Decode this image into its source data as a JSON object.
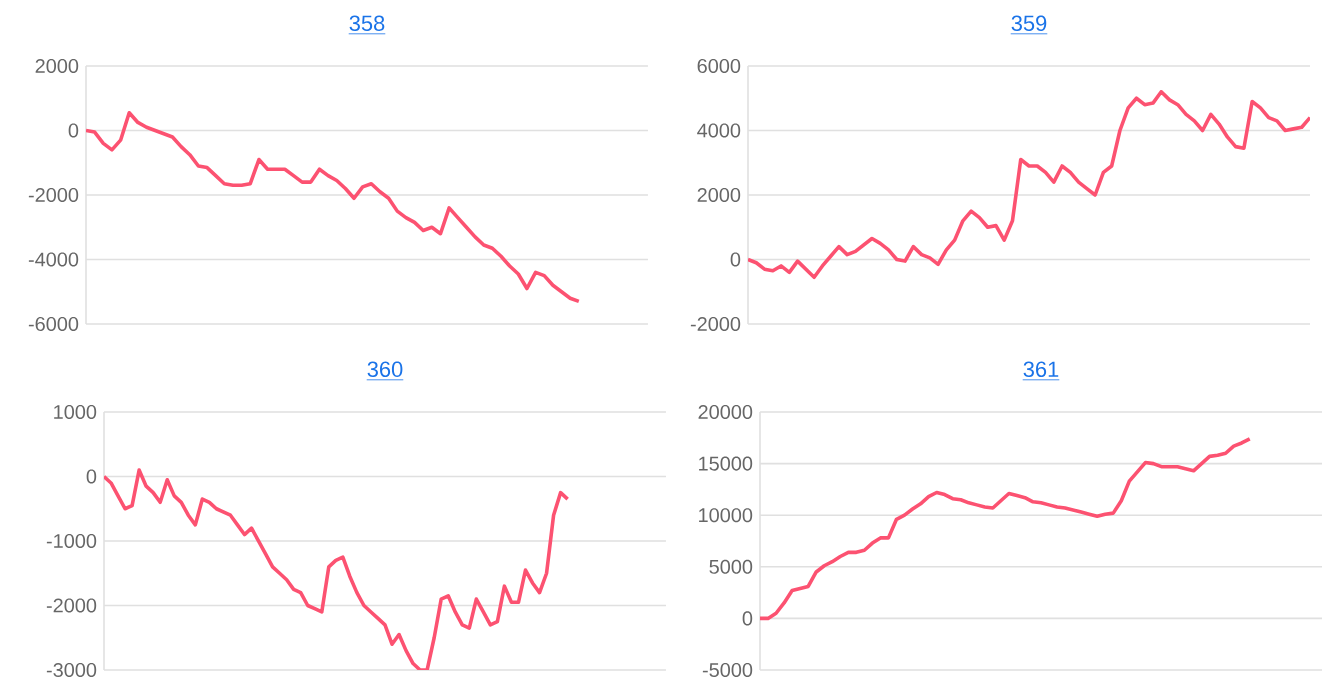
{
  "chart_data": [
    {
      "type": "line",
      "title": "358",
      "categories": [
        null,
        null,
        null,
        null,
        null,
        null,
        null,
        null,
        null,
        null,
        null,
        null,
        null,
        null,
        null,
        null,
        null,
        null,
        null,
        null,
        null,
        null,
        null,
        null,
        null,
        null,
        null,
        null,
        null,
        null,
        null,
        null,
        null,
        null,
        null,
        null,
        null,
        null,
        null,
        null,
        null,
        null,
        null,
        null,
        null,
        null,
        null,
        null,
        null,
        null,
        null,
        null,
        null,
        null,
        null,
        null,
        null,
        null,
        null,
        null,
        null,
        null,
        null,
        null,
        null,
        null
      ],
      "series": [
        {
          "color": "#fc5271",
          "values": [
            0,
            -50,
            -400,
            -600,
            -300,
            550,
            250,
            100,
            0,
            -100,
            -200,
            -500,
            -750,
            -1100,
            -1150,
            -1400,
            -1650,
            -1700,
            -1700,
            -1650,
            -900,
            -1200,
            -1200,
            -1200,
            -1400,
            -1600,
            -1600,
            -1200,
            -1400,
            -1550,
            -1800,
            -2100,
            -1750,
            -1650,
            -1900,
            -2100,
            -2500,
            -2700,
            -2850,
            -3100,
            -3000,
            -3200,
            -2400,
            -2700,
            -3000,
            -3300,
            -3550,
            -3650,
            -3900,
            -4200,
            -4450,
            -4900,
            -4400,
            -4500,
            -4800,
            -5000,
            -5200,
            -5300,
            null,
            null,
            null,
            null,
            null,
            null,
            null,
            null
          ]
        }
      ],
      "ylim": [
        -6000,
        2000
      ],
      "yticks": [
        -6000,
        -4000,
        -2000,
        0,
        2000
      ],
      "grid": "y",
      "tick_labels": "y",
      "marker": "none",
      "line_style": "solid"
    },
    {
      "type": "line",
      "title": "359",
      "categories": [
        null,
        null,
        null,
        null,
        null,
        null,
        null,
        null,
        null,
        null,
        null,
        null,
        null,
        null,
        null,
        null,
        null,
        null,
        null,
        null,
        null,
        null,
        null,
        null,
        null,
        null,
        null,
        null,
        null,
        null,
        null,
        null,
        null,
        null,
        null,
        null,
        null,
        null,
        null,
        null,
        null,
        null,
        null,
        null,
        null,
        null,
        null,
        null,
        null,
        null,
        null,
        null,
        null,
        null,
        null,
        null,
        null,
        null,
        null,
        null,
        null,
        null,
        null,
        null,
        null,
        null,
        null,
        null,
        null
      ],
      "series": [
        {
          "color": "#fc5271",
          "values": [
            0,
            -100,
            -300,
            -350,
            -200,
            -400,
            -50,
            -300,
            -550,
            -200,
            100,
            400,
            150,
            250,
            450,
            650,
            500,
            300,
            0,
            -50,
            400,
            150,
            50,
            -150,
            300,
            600,
            1200,
            1500,
            1300,
            1000,
            1050,
            600,
            1200,
            3100,
            2900,
            2900,
            2700,
            2400,
            2900,
            2700,
            2400,
            2200,
            2000,
            2700,
            2900,
            4000,
            4700,
            5000,
            4800,
            4850,
            5200,
            4950,
            4800,
            4500,
            4300,
            4000,
            4500,
            4200,
            3800,
            3500,
            3450,
            4900,
            4700,
            4400,
            4300,
            4000,
            4050,
            4100,
            4400
          ]
        }
      ],
      "ylim": [
        -2000,
        6000
      ],
      "yticks": [
        -2000,
        0,
        2000,
        4000,
        6000
      ],
      "grid": "y",
      "tick_labels": "y",
      "marker": "none",
      "line_style": "solid"
    },
    {
      "type": "line",
      "title": "360",
      "categories": [
        null,
        null,
        null,
        null,
        null,
        null,
        null,
        null,
        null,
        null,
        null,
        null,
        null,
        null,
        null,
        null,
        null,
        null,
        null,
        null,
        null,
        null,
        null,
        null,
        null,
        null,
        null,
        null,
        null,
        null,
        null,
        null,
        null,
        null,
        null,
        null,
        null,
        null,
        null,
        null,
        null,
        null,
        null,
        null,
        null,
        null,
        null,
        null,
        null,
        null,
        null,
        null,
        null,
        null,
        null,
        null,
        null,
        null,
        null,
        null,
        null,
        null,
        null,
        null,
        null,
        null,
        null,
        null,
        null,
        null,
        null,
        null,
        null,
        null,
        null,
        null,
        null,
        null,
        null,
        null,
        null
      ],
      "series": [
        {
          "color": "#fc5271",
          "values": [
            0,
            -100,
            -300,
            -500,
            -450,
            100,
            -150,
            -250,
            -400,
            -50,
            -300,
            -400,
            -600,
            -750,
            -350,
            -400,
            -500,
            -550,
            -600,
            -750,
            -900,
            -800,
            -1000,
            -1200,
            -1400,
            -1500,
            -1600,
            -1750,
            -1800,
            -2000,
            -2050,
            -2100,
            -1400,
            -1300,
            -1250,
            -1550,
            -1800,
            -2000,
            -2100,
            -2200,
            -2300,
            -2600,
            -2450,
            -2700,
            -2900,
            -3000,
            -3000,
            -2500,
            -1900,
            -1850,
            -2100,
            -2300,
            -2350,
            -1900,
            -2100,
            -2300,
            -2250,
            -1700,
            -1950,
            -1950,
            -1450,
            -1650,
            -1800,
            -1500,
            -600,
            -250,
            -350,
            null,
            null,
            null,
            null,
            null,
            null,
            null,
            null,
            null,
            null,
            null,
            null,
            null,
            null
          ]
        }
      ],
      "ylim": [
        -3000,
        1000
      ],
      "yticks": [
        -3000,
        -2000,
        -1000,
        0,
        1000
      ],
      "grid": "y",
      "tick_labels": "y",
      "marker": "none",
      "line_style": "solid"
    },
    {
      "type": "line",
      "title": "361",
      "categories": [
        null,
        null,
        null,
        null,
        null,
        null,
        null,
        null,
        null,
        null,
        null,
        null,
        null,
        null,
        null,
        null,
        null,
        null,
        null,
        null,
        null,
        null,
        null,
        null,
        null,
        null,
        null,
        null,
        null,
        null,
        null,
        null,
        null,
        null,
        null,
        null,
        null,
        null,
        null,
        null,
        null,
        null,
        null,
        null,
        null,
        null,
        null,
        null,
        null,
        null,
        null,
        null,
        null,
        null,
        null,
        null,
        null,
        null,
        null,
        null,
        null,
        null,
        null,
        null,
        null,
        null,
        null,
        null,
        null,
        null,
        null
      ],
      "series": [
        {
          "color": "#fc5271",
          "values": [
            0,
            0,
            500,
            1500,
            2700,
            2900,
            3100,
            4500,
            5100,
            5500,
            6000,
            6400,
            6400,
            6600,
            7300,
            7800,
            7800,
            9600,
            10000,
            10600,
            11100,
            11800,
            12200,
            12000,
            11600,
            11500,
            11200,
            11000,
            10800,
            10700,
            11400,
            12100,
            11900,
            11700,
            11300,
            11200,
            11000,
            10800,
            10700,
            10500,
            10300,
            10100,
            9900,
            10100,
            10200,
            11400,
            13300,
            14200,
            15100,
            15000,
            14700,
            14700,
            14700,
            14500,
            14300,
            15000,
            15700,
            15800,
            16000,
            16700,
            17000,
            17400,
            null,
            null,
            null,
            null,
            null,
            null,
            null,
            null,
            null
          ]
        }
      ],
      "ylim": [
        -5000,
        20000
      ],
      "yticks": [
        -5000,
        0,
        5000,
        10000,
        15000,
        20000
      ],
      "grid": "y",
      "tick_labels": "y",
      "marker": "none",
      "line_style": "solid"
    }
  ]
}
